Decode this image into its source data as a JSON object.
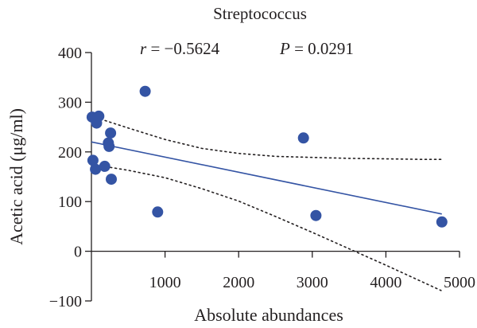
{
  "chart_data": {
    "type": "scatter",
    "title": "Streptococcus",
    "stats": {
      "r_label": "r",
      "r_value": " = −0.5624",
      "p_label": "P",
      "p_value": " = 0.0291"
    },
    "xlabel": "Absolute abundances",
    "ylabel": "Acetic acid (μg/ml)",
    "xlim": [
      0,
      5000
    ],
    "ylim": [
      -100,
      400
    ],
    "xticks": [
      1000,
      2000,
      3000,
      4000,
      5000
    ],
    "xtick_labels": [
      "1000",
      "2000",
      "3000",
      "4000",
      "5000"
    ],
    "yticks": [
      400,
      300,
      200,
      100,
      0,
      -100
    ],
    "ytick_labels": [
      "400",
      "300",
      "200",
      "100",
      "0",
      "−100"
    ],
    "points": [
      {
        "x": 10,
        "y": 270
      },
      {
        "x": 60,
        "y": 265
      },
      {
        "x": 70,
        "y": 258
      },
      {
        "x": 100,
        "y": 272
      },
      {
        "x": 20,
        "y": 183
      },
      {
        "x": 55,
        "y": 165
      },
      {
        "x": 180,
        "y": 171
      },
      {
        "x": 230,
        "y": 218
      },
      {
        "x": 240,
        "y": 211
      },
      {
        "x": 260,
        "y": 238
      },
      {
        "x": 270,
        "y": 145
      },
      {
        "x": 730,
        "y": 322
      },
      {
        "x": 900,
        "y": 79
      },
      {
        "x": 2880,
        "y": 228
      },
      {
        "x": 3050,
        "y": 72
      },
      {
        "x": 4760,
        "y": 59
      }
    ],
    "regression_line": {
      "x": [
        0,
        4760
      ],
      "y": [
        220,
        75
      ]
    },
    "ci_upper": {
      "x": [
        0,
        500,
        1000,
        1500,
        2000,
        2500,
        3000,
        3500,
        4000,
        4500,
        4750
      ],
      "y": [
        272,
        248,
        225,
        207,
        197,
        191,
        189,
        187,
        186,
        185,
        185
      ]
    },
    "ci_lower": {
      "x": [
        0,
        500,
        1000,
        1500,
        2000,
        2500,
        3000,
        3500,
        4000,
        4500,
        4750
      ],
      "y": [
        175,
        163,
        148,
        126,
        101,
        70,
        38,
        5,
        -28,
        -62,
        -79
      ]
    },
    "colors": {
      "points": "#3454a4",
      "line": "#3454a4",
      "ci": "#231f20"
    },
    "grid": false,
    "legend": "none"
  }
}
